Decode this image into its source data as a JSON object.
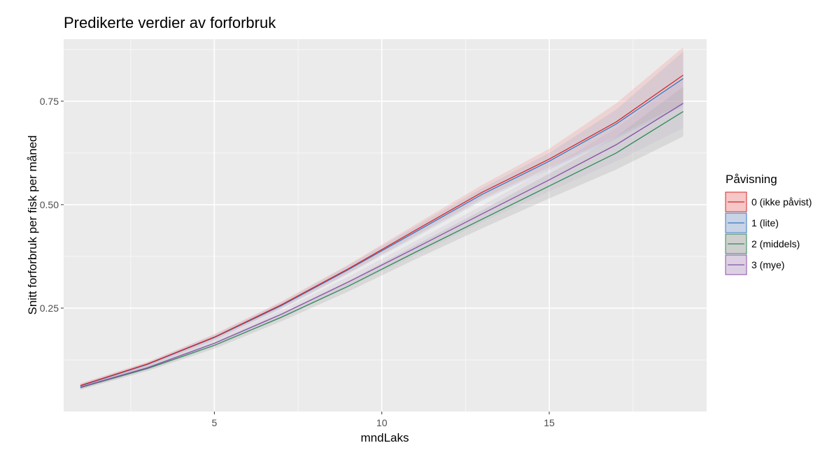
{
  "chart_data": {
    "type": "line",
    "title": "Predikerte verdier av forforbruk",
    "xlabel": "mndLaks",
    "ylabel": "Snitt forforbruk per fisk per måned",
    "xlim": [
      0.5,
      19.7
    ],
    "ylim": [
      0.0,
      0.9
    ],
    "xticks": [
      5,
      10,
      15
    ],
    "xtick_labels": [
      "5",
      "10",
      "15"
    ],
    "yticks": [
      0.25,
      0.5,
      0.75
    ],
    "ytick_labels": [
      "0.25",
      "0.50",
      "0.75"
    ],
    "grid": true,
    "legend": {
      "title": "Påvisning",
      "position": "right"
    },
    "x": [
      1,
      3,
      5,
      7,
      9,
      11,
      13,
      15,
      17,
      19
    ],
    "series": [
      {
        "name": "0 (ikke påvist)",
        "color": "#d62728",
        "values": [
          0.063,
          0.115,
          0.18,
          0.258,
          0.345,
          0.438,
          0.53,
          0.61,
          0.7,
          0.813
        ],
        "lower": [
          0.058,
          0.11,
          0.173,
          0.25,
          0.335,
          0.425,
          0.515,
          0.59,
          0.665,
          0.745
        ],
        "upper": [
          0.068,
          0.12,
          0.187,
          0.266,
          0.355,
          0.452,
          0.548,
          0.635,
          0.745,
          0.88
        ]
      },
      {
        "name": "1 (lite)",
        "color": "#3a78c2",
        "values": [
          0.062,
          0.114,
          0.179,
          0.256,
          0.343,
          0.434,
          0.525,
          0.605,
          0.695,
          0.805
        ],
        "lower": [
          0.057,
          0.109,
          0.172,
          0.248,
          0.333,
          0.421,
          0.51,
          0.585,
          0.66,
          0.738
        ],
        "upper": [
          0.067,
          0.119,
          0.186,
          0.264,
          0.353,
          0.447,
          0.54,
          0.625,
          0.73,
          0.87
        ]
      },
      {
        "name": "2 (middels)",
        "color": "#2e8b57",
        "values": [
          0.058,
          0.104,
          0.16,
          0.228,
          0.303,
          0.385,
          0.465,
          0.545,
          0.625,
          0.725
        ],
        "lower": [
          0.053,
          0.098,
          0.152,
          0.218,
          0.29,
          0.368,
          0.443,
          0.515,
          0.585,
          0.665
        ],
        "upper": [
          0.063,
          0.11,
          0.168,
          0.238,
          0.316,
          0.402,
          0.487,
          0.575,
          0.665,
          0.785
        ]
      },
      {
        "name": "3 (mye)",
        "color": "#8a4fa8",
        "values": [
          0.059,
          0.106,
          0.165,
          0.235,
          0.313,
          0.395,
          0.478,
          0.56,
          0.645,
          0.745
        ],
        "lower": [
          0.054,
          0.1,
          0.157,
          0.225,
          0.3,
          0.378,
          0.458,
          0.532,
          0.605,
          0.685
        ],
        "upper": [
          0.064,
          0.112,
          0.173,
          0.245,
          0.326,
          0.412,
          0.498,
          0.588,
          0.685,
          0.805
        ]
      }
    ]
  }
}
